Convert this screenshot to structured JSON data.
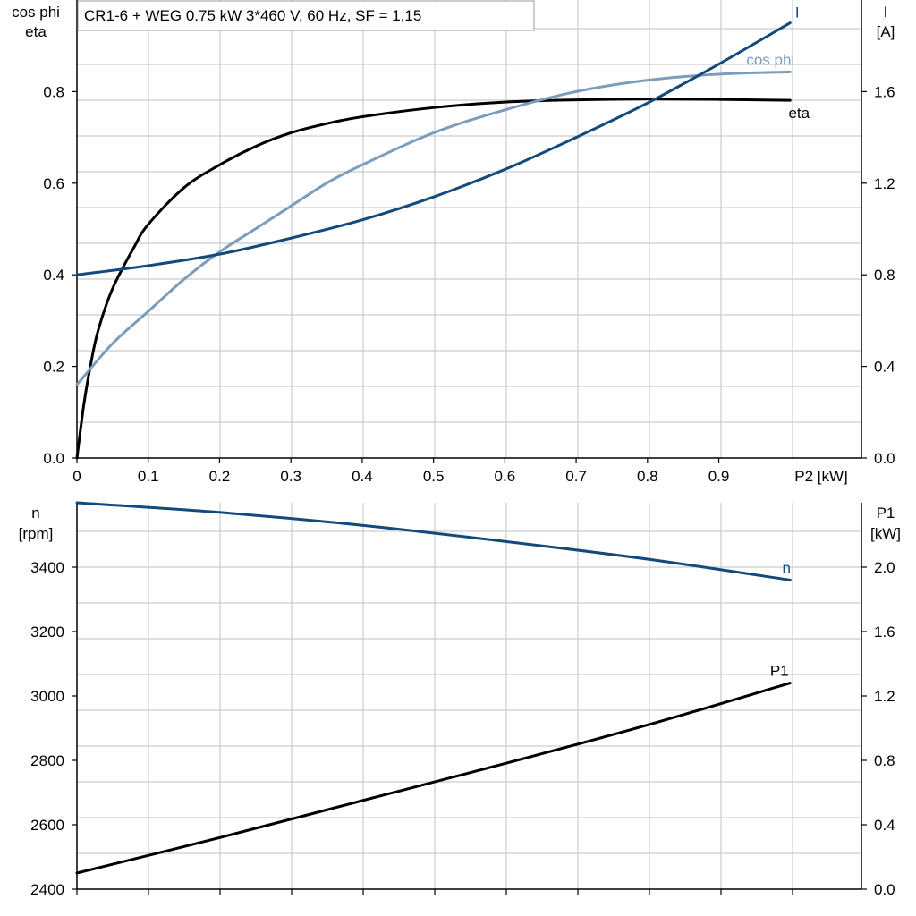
{
  "colors": {
    "dark_blue": "#124a7c",
    "light_blue": "#7b9dbb",
    "black": "#000000",
    "grid": "#cccccc"
  },
  "header": "CR1-6 + WEG   0.75 kW   3*460 V, 60 Hz, SF = 1,15",
  "chart_data": [
    {
      "type": "line",
      "name": "top",
      "x_label": "P2 [kW]",
      "x_range": [
        0,
        1.1
      ],
      "x_ticks": [
        0,
        0.1,
        0.2,
        0.3,
        0.4,
        0.5,
        0.6,
        0.7,
        0.8,
        0.9
      ],
      "left_axis": {
        "label_lines": [
          "cos phi",
          "eta"
        ],
        "range": [
          0,
          1.0
        ],
        "ticks": [
          0.0,
          0.2,
          0.4,
          0.6,
          0.8
        ]
      },
      "right_axis": {
        "label_lines": [
          "I",
          "[A]"
        ],
        "range": [
          0,
          2.0
        ],
        "ticks": [
          0.0,
          0.4,
          0.8,
          1.2,
          1.6
        ]
      },
      "grid": true,
      "series": [
        {
          "name": "eta",
          "axis": "left",
          "color_key": "black",
          "x": [
            0,
            0.01,
            0.02,
            0.03,
            0.05,
            0.08,
            0.1,
            0.15,
            0.2,
            0.25,
            0.3,
            0.35,
            0.4,
            0.5,
            0.6,
            0.7,
            0.8,
            0.9,
            1.0
          ],
          "y": [
            0,
            0.12,
            0.21,
            0.28,
            0.37,
            0.46,
            0.51,
            0.59,
            0.64,
            0.68,
            0.71,
            0.73,
            0.745,
            0.765,
            0.777,
            0.782,
            0.784,
            0.783,
            0.781
          ]
        },
        {
          "name": "cos phi",
          "axis": "left",
          "color_key": "light_blue",
          "x": [
            0,
            0.05,
            0.1,
            0.15,
            0.2,
            0.25,
            0.3,
            0.35,
            0.4,
            0.5,
            0.6,
            0.7,
            0.8,
            0.9,
            1.0
          ],
          "y": [
            0.16,
            0.25,
            0.32,
            0.39,
            0.45,
            0.5,
            0.55,
            0.6,
            0.64,
            0.71,
            0.76,
            0.8,
            0.825,
            0.838,
            0.843
          ]
        },
        {
          "name": "I",
          "axis": "right",
          "color_key": "dark_blue",
          "x": [
            0,
            0.1,
            0.2,
            0.3,
            0.4,
            0.5,
            0.6,
            0.7,
            0.8,
            0.9,
            1.0
          ],
          "y": [
            0.8,
            0.84,
            0.89,
            0.96,
            1.04,
            1.14,
            1.26,
            1.4,
            1.55,
            1.72,
            1.9
          ]
        }
      ]
    },
    {
      "type": "line",
      "name": "bottom",
      "x_range": [
        0,
        1.1
      ],
      "left_axis": {
        "label_lines": [
          "n",
          "[rpm]"
        ],
        "range": [
          2400,
          3600
        ],
        "ticks": [
          2400,
          2600,
          2800,
          3000,
          3200,
          3400
        ]
      },
      "right_axis": {
        "label_lines": [
          "P1",
          "[kW]"
        ],
        "range": [
          0,
          2.4
        ],
        "ticks": [
          0.0,
          0.4,
          0.8,
          1.2,
          1.6,
          2.0
        ]
      },
      "grid": true,
      "series": [
        {
          "name": "n",
          "axis": "left",
          "color_key": "dark_blue",
          "x": [
            0,
            0.2,
            0.4,
            0.6,
            0.8,
            1.0
          ],
          "y": [
            3600,
            3570,
            3530,
            3480,
            3425,
            3360
          ]
        },
        {
          "name": "P1",
          "axis": "right",
          "color_key": "black",
          "x": [
            0,
            0.2,
            0.4,
            0.6,
            0.8,
            1.0
          ],
          "y": [
            0.1,
            0.32,
            0.55,
            0.78,
            1.02,
            1.28
          ]
        }
      ]
    }
  ]
}
